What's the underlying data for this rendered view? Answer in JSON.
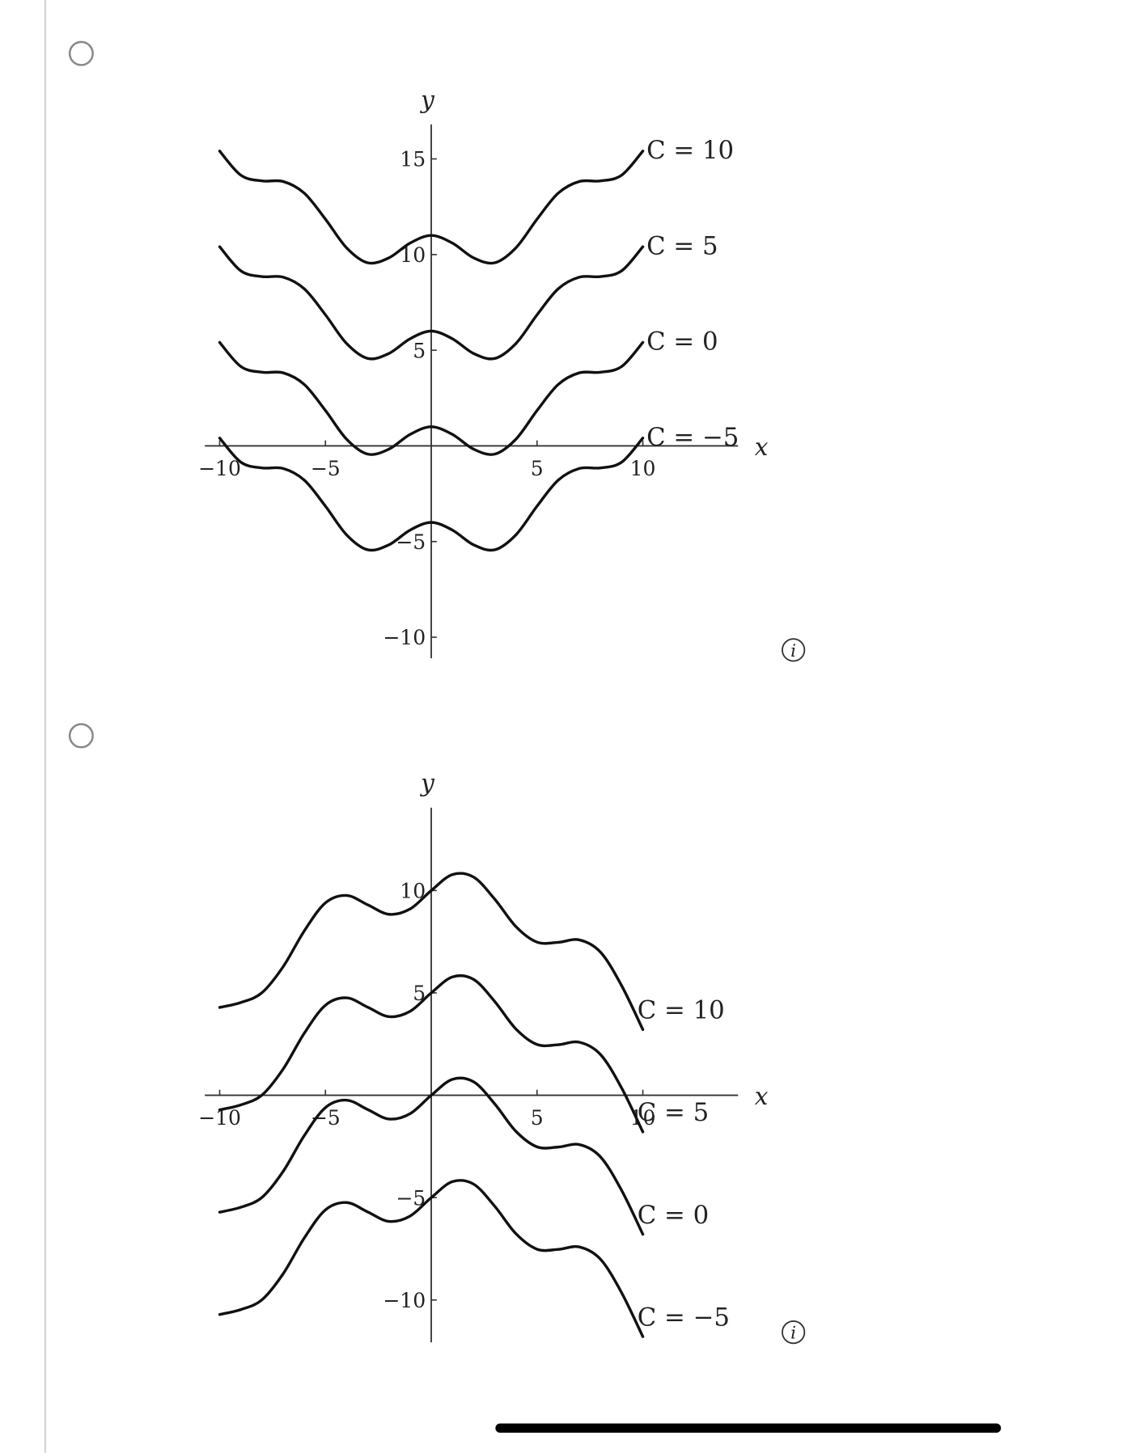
{
  "chart_data": [
    {
      "type": "line",
      "x_label": "x",
      "y_label": "y",
      "x": [
        -10,
        -9,
        -8,
        -7,
        -6,
        -5,
        -4,
        -3,
        -2,
        -1,
        0,
        1,
        2,
        3,
        4,
        5,
        6,
        7,
        8,
        9,
        10
      ],
      "xlim": [
        -10.7,
        14.5
      ],
      "ylim": [
        -11.1,
        16.8
      ],
      "xticks": [
        {
          "value": -10,
          "label": "−10"
        },
        {
          "value": -5,
          "label": "−5"
        },
        5,
        10
      ],
      "yticks": [
        {
          "value": -10,
          "label": "−10"
        },
        {
          "value": -5,
          "label": "−5"
        },
        5,
        10,
        15
      ],
      "series": [
        {
          "name": "C = 10",
          "color": "#111111",
          "values": [
            15.41,
            14.15,
            13.85,
            13.82,
            13.21,
            11.85,
            10.35,
            9.57,
            9.83,
            10.6,
            11,
            10.6,
            9.83,
            9.57,
            10.35,
            11.85,
            13.21,
            13.82,
            13.85,
            14.15,
            15.41
          ]
        },
        {
          "name": "C = 5",
          "color": "#111111",
          "values": [
            10.41,
            9.15,
            8.85,
            8.82,
            8.21,
            6.85,
            5.35,
            4.57,
            4.83,
            5.6,
            6,
            5.6,
            4.83,
            4.57,
            5.35,
            6.85,
            8.21,
            8.82,
            8.85,
            9.15,
            10.41
          ]
        },
        {
          "name": "C = 0",
          "color": "#111111",
          "values": [
            5.41,
            4.15,
            3.85,
            3.82,
            3.21,
            1.85,
            0.35,
            -0.43,
            -0.17,
            0.6,
            1,
            0.6,
            -0.17,
            -0.43,
            0.35,
            1.85,
            3.21,
            3.82,
            3.85,
            4.15,
            5.41
          ]
        },
        {
          "name": "C = −5",
          "color": "#111111",
          "values": [
            0.41,
            -0.85,
            -1.15,
            -1.18,
            -1.79,
            -3.15,
            -4.65,
            -5.43,
            -5.17,
            -4.4,
            -4,
            -4.4,
            -5.17,
            -5.43,
            -4.65,
            -3.15,
            -1.79,
            -1.18,
            -1.15,
            -0.85,
            0.41
          ]
        }
      ]
    },
    {
      "type": "line",
      "x_label": "x",
      "y_label": "y",
      "x": [
        -10,
        -9,
        -8,
        -7,
        -6,
        -5,
        -4,
        -3,
        -2,
        -1,
        0,
        1,
        2,
        3,
        4,
        5,
        6,
        7,
        8,
        9,
        10
      ],
      "xlim": [
        -10.7,
        14.5
      ],
      "ylim": [
        -12.07,
        14.05
      ],
      "xticks": [
        {
          "value": -10,
          "label": "−10"
        },
        {
          "value": -5,
          "label": "−5"
        },
        5,
        10
      ],
      "yticks": [
        {
          "value": -10,
          "label": "−10"
        },
        {
          "value": -5,
          "label": "−5"
        },
        5,
        10
      ],
      "series": [
        {
          "name": "C = 10",
          "color": "#111111",
          "values": [
            4.29,
            4.53,
            5.01,
            6.28,
            8.03,
            9.4,
            9.76,
            9.3,
            8.84,
            9.1,
            10,
            10.78,
            10.66,
            9.58,
            8.24,
            7.48,
            7.47,
            7.59,
            6.99,
            5.35,
            3.21
          ]
        },
        {
          "name": "C = 5",
          "color": "#111111",
          "values": [
            -0.71,
            -0.47,
            0.01,
            1.28,
            3.03,
            4.4,
            4.76,
            4.3,
            3.84,
            4.1,
            5,
            5.78,
            5.66,
            4.58,
            3.24,
            2.48,
            2.47,
            2.59,
            1.99,
            0.35,
            -1.79
          ]
        },
        {
          "name": "C = 0",
          "color": "#111111",
          "values": [
            -5.71,
            -5.47,
            -4.99,
            -3.72,
            -1.97,
            -0.6,
            -0.24,
            -0.7,
            -1.16,
            -0.9,
            0,
            0.78,
            0.66,
            -0.42,
            -1.76,
            -2.52,
            -2.53,
            -2.41,
            -3.01,
            -4.65,
            -6.79
          ]
        },
        {
          "name": "C = −5",
          "color": "#111111",
          "values": [
            -10.71,
            -10.47,
            -9.99,
            -8.72,
            -6.97,
            -5.6,
            -5.24,
            -5.7,
            -6.16,
            -5.9,
            -5,
            -4.22,
            -4.34,
            -5.42,
            -6.76,
            -7.52,
            -7.53,
            -7.41,
            -8.01,
            -9.65,
            -11.79
          ]
        }
      ]
    }
  ],
  "info_icon": "i"
}
